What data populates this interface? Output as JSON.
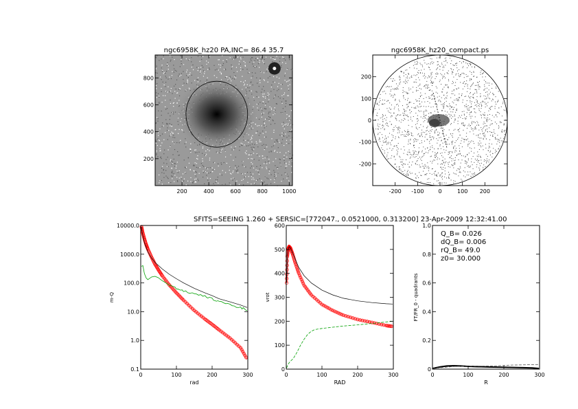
{
  "figure": {
    "suptitle": "SFITS=SEEING 1.260 + SERSIC=[772047., 0.0521000, 0.313200]  23-Apr-2009 12:32:41.00",
    "colors": {
      "model": "#ff0000",
      "observed": "#00a000",
      "total": "#000000",
      "image": "#7a7a7a"
    }
  },
  "chart_data": [
    {
      "type": "heatmap",
      "title": "ngc6958K_hz20 PA,INC= 86.4 35.7",
      "xlabel": "",
      "ylabel": "",
      "xlim": [
        0,
        1024
      ],
      "ylim": [
        0,
        970
      ],
      "xticks": [
        200,
        400,
        600,
        800,
        1000
      ],
      "yticks": [
        200,
        400,
        600,
        800
      ],
      "features": {
        "galaxy_center": [
          460,
          530
        ],
        "bright_star": [
          890,
          870
        ],
        "ellipse": {
          "center": [
            460,
            530
          ],
          "semi_major": 230,
          "semi_minor": 245
        }
      }
    },
    {
      "type": "heatmap",
      "title": "ngc6958K_hz20_compact.ps",
      "xlabel": "",
      "ylabel": "",
      "xlim": [
        -300,
        300
      ],
      "ylim": [
        -300,
        300
      ],
      "xticks": [
        -200,
        -100,
        0,
        100,
        200
      ],
      "yticks": [
        -200,
        -100,
        0,
        100,
        200
      ],
      "features": {
        "circle_radius": 300
      }
    },
    {
      "type": "line",
      "title": "",
      "xlabel": "rad",
      "ylabel": "m-Q",
      "xlim": [
        0,
        300
      ],
      "ylim": [
        0.1,
        10000
      ],
      "yscale": "log",
      "xticks": [
        0,
        100,
        200,
        300
      ],
      "yticklabels": [
        "0.1",
        "1.0",
        "10.0",
        "100.0",
        "1000.0",
        "10000.0"
      ],
      "yticks": [
        0.1,
        1,
        10,
        100,
        1000,
        10000
      ],
      "series": [
        {
          "role": "model",
          "style": "red circles",
          "x": [
            2,
            5,
            10,
            15,
            20,
            30,
            40,
            50,
            60,
            80,
            100,
            120,
            150,
            180,
            200,
            220,
            250,
            280,
            298
          ],
          "y": [
            9000,
            6000,
            3500,
            2200,
            1500,
            800,
            450,
            280,
            180,
            85,
            45,
            25,
            11,
            5.5,
            3.6,
            2.3,
            1.2,
            0.55,
            0.22
          ]
        },
        {
          "role": "total",
          "style": "black line",
          "x": [
            2,
            5,
            10,
            20,
            30,
            40,
            50,
            60,
            80,
            100,
            120,
            150,
            180,
            200,
            220,
            250,
            280,
            298
          ],
          "y": [
            9000,
            5000,
            2600,
            1200,
            750,
            520,
            400,
            310,
            200,
            140,
            100,
            65,
            45,
            36,
            28,
            22,
            17,
            14
          ]
        },
        {
          "role": "observed",
          "style": "green line",
          "x": [
            2,
            6,
            10,
            15,
            20,
            30,
            40,
            50,
            60,
            80,
            100,
            120,
            150,
            180,
            200,
            220,
            250,
            280,
            298
          ],
          "y": [
            380,
            400,
            220,
            150,
            130,
            160,
            170,
            150,
            120,
            85,
            65,
            52,
            42,
            35,
            28,
            22,
            17,
            14,
            11
          ]
        }
      ]
    },
    {
      "type": "line",
      "title": "",
      "xlabel": "RAD",
      "ylabel": "vrot",
      "xlim": [
        0,
        300
      ],
      "ylim": [
        0,
        600
      ],
      "xticks": [
        0,
        100,
        200,
        300
      ],
      "yticks": [
        0,
        100,
        200,
        300,
        400,
        500,
        600
      ],
      "series": [
        {
          "role": "model",
          "style": "red circles",
          "x": [
            1,
            3,
            5,
            8,
            12,
            18,
            25,
            35,
            50,
            70,
            100,
            130,
            160,
            200,
            240,
            280,
            298
          ],
          "y": [
            360,
            470,
            500,
            512,
            505,
            480,
            445,
            400,
            350,
            310,
            270,
            245,
            225,
            207,
            195,
            182,
            178
          ]
        },
        {
          "role": "total",
          "style": "black line",
          "x": [
            1,
            3,
            5,
            8,
            12,
            18,
            25,
            35,
            50,
            70,
            100,
            130,
            160,
            200,
            240,
            280,
            298
          ],
          "y": [
            360,
            470,
            500,
            512,
            505,
            485,
            460,
            425,
            390,
            360,
            330,
            310,
            296,
            285,
            278,
            273,
            272
          ]
        },
        {
          "role": "observed",
          "style": "green dashed",
          "x": [
            1,
            5,
            10,
            20,
            30,
            40,
            50,
            60,
            70,
            80,
            100,
            130,
            160,
            200,
            250,
            298
          ],
          "y": [
            5,
            20,
            30,
            45,
            70,
            100,
            125,
            145,
            158,
            165,
            170,
            175,
            180,
            185,
            192,
            200
          ]
        }
      ]
    },
    {
      "type": "line",
      "title": "",
      "xlabel": "R",
      "ylabel": "FT/FR_0 - quadrants",
      "xlim": [
        0,
        300
      ],
      "ylim": [
        0,
        1
      ],
      "xticks": [
        0,
        100,
        200,
        300
      ],
      "yticks": [
        0,
        0.2,
        0.4,
        0.6,
        0.8,
        1.0
      ],
      "yticklabels": [
        "0",
        "0.2",
        "0.4",
        "0.6",
        "0.8",
        "1.0"
      ],
      "annotations": [
        "Q_B=  0.026",
        "dQ_B=  0.006",
        "rQ_B=   49.0",
        "z0= 30.000"
      ],
      "series": [
        {
          "role": "total",
          "style": "thick black line",
          "x": [
            0,
            20,
            40,
            60,
            80,
            100,
            130,
            160,
            200,
            240,
            280,
            298
          ],
          "y": [
            0.005,
            0.015,
            0.022,
            0.024,
            0.022,
            0.019,
            0.017,
            0.015,
            0.013,
            0.011,
            0.008,
            0.005
          ]
        },
        {
          "role": "total",
          "style": "thin black line",
          "x": [
            0,
            20,
            40,
            60,
            80,
            100,
            130,
            160,
            200,
            240,
            280,
            298
          ],
          "y": [
            0.005,
            0.012,
            0.018,
            0.02,
            0.019,
            0.017,
            0.014,
            0.013,
            0.011,
            0.009,
            0.007,
            0.005
          ]
        },
        {
          "role": "observed",
          "style": "dashed gray line",
          "x": [
            0,
            30,
            60,
            100,
            140,
            180,
            220,
            260,
            298
          ],
          "y": [
            0.005,
            0.012,
            0.018,
            0.02,
            0.021,
            0.023,
            0.028,
            0.03,
            0.032
          ]
        }
      ]
    }
  ]
}
